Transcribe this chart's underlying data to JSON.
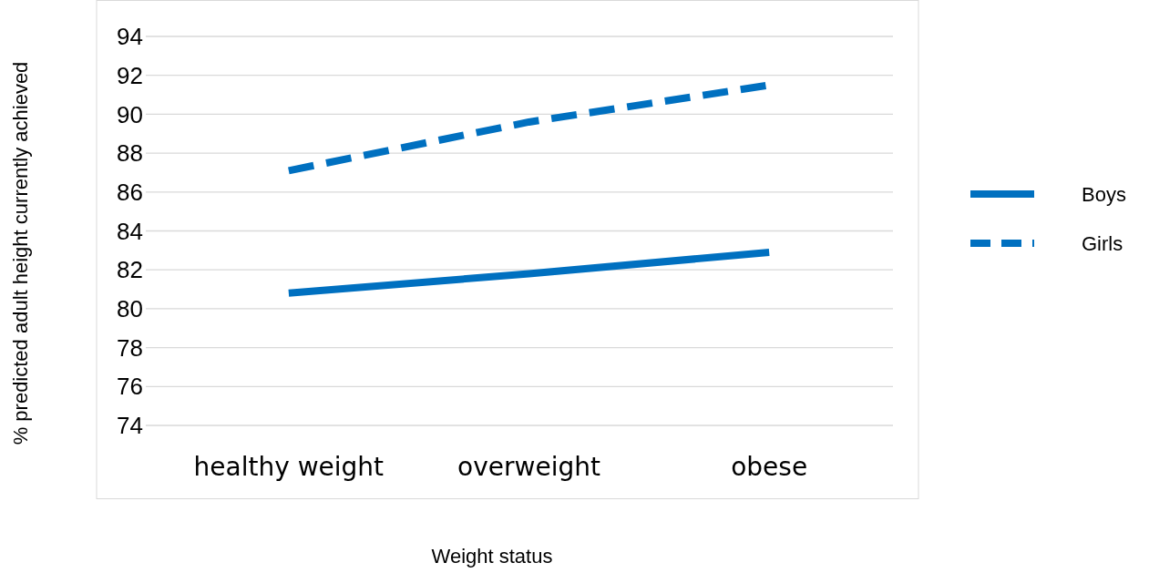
{
  "chart_data": {
    "type": "line",
    "xlabel": "Weight status",
    "ylabel": "% predicted adult height currently achieved",
    "categories": [
      "healthy weight",
      "overweight",
      "obese"
    ],
    "series": [
      {
        "name": "Boys",
        "color": "#0070c0",
        "values": [
          80.8,
          81.8,
          82.9
        ],
        "line_style": "solid"
      },
      {
        "name": "Girls",
        "color": "#0070c0",
        "values": [
          87.1,
          89.6,
          91.5
        ],
        "line_style": "dashed"
      }
    ],
    "ylim": [
      74,
      94
    ],
    "yticks": [
      74,
      76,
      78,
      80,
      82,
      84,
      86,
      88,
      90,
      92,
      94
    ],
    "grid": "y",
    "legend": "right",
    "marker": "none"
  }
}
